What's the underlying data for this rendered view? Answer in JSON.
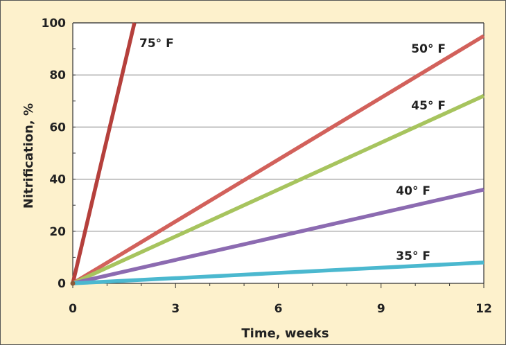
{
  "colors": {
    "background": "#fdf1cc",
    "plot_background": "#ffffff",
    "grid": "#999999",
    "axis": "#333333"
  },
  "chart_data": {
    "type": "line",
    "title": "",
    "xlabel": "Time, weeks",
    "ylabel": "Nitrification, %",
    "xlim": [
      0,
      12
    ],
    "ylim": [
      0,
      100
    ],
    "xticks": [
      0,
      3,
      6,
      9,
      12
    ],
    "yticks": [
      0,
      20,
      40,
      60,
      80,
      100
    ],
    "grid": "horizontal",
    "legend": "none (series labeled directly on lines)",
    "series": [
      {
        "name": "75° F",
        "color": "#b5403c",
        "x": [
          0,
          1.8
        ],
        "y": [
          0,
          100
        ]
      },
      {
        "name": "50° F",
        "color": "#d2615b",
        "x": [
          0,
          12
        ],
        "y": [
          0,
          95
        ]
      },
      {
        "name": "45° F",
        "color": "#a7c45e",
        "x": [
          0,
          12
        ],
        "y": [
          0,
          72
        ]
      },
      {
        "name": "40° F",
        "color": "#8c6bb1",
        "x": [
          0,
          12
        ],
        "y": [
          0,
          36
        ]
      },
      {
        "name": "35° F",
        "color": "#4bb8cf",
        "x": [
          0,
          12
        ],
        "y": [
          0,
          8
        ]
      }
    ]
  }
}
